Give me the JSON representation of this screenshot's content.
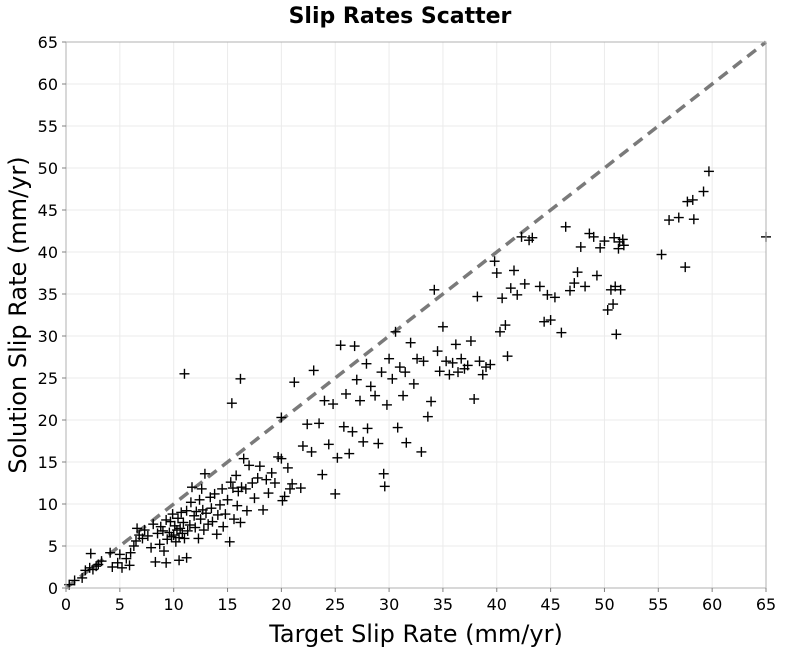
{
  "chart_data": {
    "type": "scatter",
    "title": "Slip Rates Scatter",
    "xlabel": "Target Slip Rate (mm/yr)",
    "ylabel": "Solution Slip Rate (mm/yr)",
    "xlim": [
      0,
      65
    ],
    "ylim": [
      0,
      65
    ],
    "xticks": [
      0,
      5,
      10,
      15,
      20,
      25,
      30,
      35,
      40,
      45,
      50,
      55,
      60,
      65
    ],
    "yticks": [
      0,
      5,
      10,
      15,
      20,
      25,
      30,
      35,
      40,
      45,
      50,
      55,
      60,
      65
    ],
    "grid": true,
    "marker": "plus",
    "marker_color": "#000000",
    "reference_line": {
      "from": [
        0,
        0
      ],
      "to": [
        65,
        65
      ],
      "style": "dashed",
      "color": "#7a7a7a"
    },
    "points": [
      [
        0.3,
        0.4
      ],
      [
        0.8,
        0.9
      ],
      [
        1.5,
        1.2
      ],
      [
        1.8,
        2.1
      ],
      [
        2.2,
        2.4
      ],
      [
        2.5,
        2.2
      ],
      [
        2.8,
        2.6
      ],
      [
        2.3,
        4.1
      ],
      [
        3.0,
        2.8
      ],
      [
        3.3,
        3.2
      ],
      [
        4.1,
        4.2
      ],
      [
        4.3,
        2.5
      ],
      [
        4.8,
        3.0
      ],
      [
        5.0,
        4.0
      ],
      [
        5.2,
        2.4
      ],
      [
        5.6,
        3.5
      ],
      [
        5.9,
        2.7
      ],
      [
        6.0,
        4.2
      ],
      [
        6.3,
        5.0
      ],
      [
        6.5,
        5.6
      ],
      [
        6.6,
        7.1
      ],
      [
        6.8,
        6.3
      ],
      [
        7.1,
        5.9
      ],
      [
        7.3,
        6.9
      ],
      [
        7.6,
        6.2
      ],
      [
        7.9,
        4.8
      ],
      [
        8.1,
        7.6
      ],
      [
        8.3,
        3.1
      ],
      [
        8.5,
        6.5
      ],
      [
        8.7,
        5.2
      ],
      [
        8.8,
        7.3
      ],
      [
        9.0,
        6.8
      ],
      [
        9.1,
        4.4
      ],
      [
        9.3,
        8.1
      ],
      [
        9.4,
        5.8
      ],
      [
        9.6,
        6.6
      ],
      [
        9.7,
        7.9
      ],
      [
        9.8,
        6.1
      ],
      [
        9.9,
        8.8
      ],
      [
        10.0,
        6.3
      ],
      [
        10.1,
        7.4
      ],
      [
        10.2,
        5.5
      ],
      [
        10.3,
        6.9
      ],
      [
        10.4,
        8.3
      ],
      [
        10.5,
        6.0
      ],
      [
        10.6,
        7.1
      ],
      [
        10.7,
        9.0
      ],
      [
        10.8,
        6.5
      ],
      [
        10.9,
        7.8
      ],
      [
        11.0,
        5.9
      ],
      [
        9.3,
        3.0
      ],
      [
        10.5,
        3.3
      ],
      [
        11.2,
        3.6
      ],
      [
        11.2,
        9.2
      ],
      [
        11.3,
        6.8
      ],
      [
        11.5,
        7.5
      ],
      [
        11.6,
        10.2
      ],
      [
        11.7,
        12.0
      ],
      [
        11.9,
        8.6
      ],
      [
        12.0,
        7.2
      ],
      [
        12.1,
        9.1
      ],
      [
        12.3,
        5.9
      ],
      [
        12.4,
        10.5
      ],
      [
        12.5,
        8.2
      ],
      [
        12.6,
        11.8
      ],
      [
        12.7,
        9.3
      ],
      [
        12.8,
        6.9
      ],
      [
        12.9,
        13.6
      ],
      [
        13.0,
        8.9
      ],
      [
        13.2,
        7.6
      ],
      [
        13.4,
        10.8
      ],
      [
        13.5,
        9.5
      ],
      [
        13.6,
        7.9
      ],
      [
        13.8,
        11.2
      ],
      [
        14.0,
        6.4
      ],
      [
        14.1,
        8.7
      ],
      [
        14.3,
        9.9
      ],
      [
        14.5,
        11.8
      ],
      [
        14.6,
        7.3
      ],
      [
        14.8,
        8.8
      ],
      [
        15.0,
        10.5
      ],
      [
        15.2,
        5.5
      ],
      [
        15.3,
        12.6
      ],
      [
        15.5,
        11.9
      ],
      [
        15.6,
        8.2
      ],
      [
        15.8,
        13.4
      ],
      [
        15.9,
        9.8
      ],
      [
        16.0,
        11.5
      ],
      [
        16.2,
        7.8
      ],
      [
        16.3,
        12.0
      ],
      [
        16.5,
        15.4
      ],
      [
        16.7,
        11.8
      ],
      [
        16.8,
        9.2
      ],
      [
        17.0,
        14.6
      ],
      [
        17.3,
        12.5
      ],
      [
        17.5,
        10.7
      ],
      [
        17.8,
        13.1
      ],
      [
        18.0,
        14.5
      ],
      [
        18.3,
        9.3
      ],
      [
        18.6,
        12.9
      ],
      [
        18.8,
        11.3
      ],
      [
        19.1,
        13.7
      ],
      [
        19.4,
        12.5
      ],
      [
        19.7,
        15.6
      ],
      [
        20.0,
        15.4
      ],
      [
        20.3,
        10.9
      ],
      [
        20.6,
        14.3
      ],
      [
        20.8,
        11.8
      ],
      [
        21.0,
        12.4
      ],
      [
        21.2,
        24.5
      ],
      [
        11.0,
        25.5
      ],
      [
        15.4,
        22.0
      ],
      [
        16.2,
        24.9
      ],
      [
        20.0,
        20.3
      ],
      [
        22.0,
        16.9
      ],
      [
        22.4,
        19.5
      ],
      [
        22.8,
        16.2
      ],
      [
        23.0,
        25.9
      ],
      [
        23.5,
        19.6
      ],
      [
        23.8,
        13.5
      ],
      [
        24.0,
        22.3
      ],
      [
        24.4,
        17.1
      ],
      [
        24.8,
        21.9
      ],
      [
        25.0,
        11.2
      ],
      [
        25.2,
        15.5
      ],
      [
        25.5,
        28.9
      ],
      [
        25.8,
        19.2
      ],
      [
        26.0,
        23.1
      ],
      [
        26.3,
        16.0
      ],
      [
        26.6,
        18.6
      ],
      [
        26.8,
        28.8
      ],
      [
        27.0,
        24.8
      ],
      [
        27.3,
        22.3
      ],
      [
        27.6,
        17.4
      ],
      [
        27.9,
        26.7
      ],
      [
        28.0,
        19.0
      ],
      [
        28.3,
        24.0
      ],
      [
        28.7,
        22.9
      ],
      [
        29.0,
        17.2
      ],
      [
        29.3,
        25.7
      ],
      [
        29.5,
        13.6
      ],
      [
        29.6,
        12.1
      ],
      [
        29.8,
        21.8
      ],
      [
        30.0,
        27.3
      ],
      [
        30.3,
        24.9
      ],
      [
        30.6,
        30.5
      ],
      [
        30.8,
        19.1
      ],
      [
        31.0,
        26.3
      ],
      [
        31.3,
        22.9
      ],
      [
        31.5,
        25.7
      ],
      [
        31.6,
        17.3
      ],
      [
        32.0,
        29.2
      ],
      [
        32.3,
        24.3
      ],
      [
        32.6,
        27.3
      ],
      [
        33.0,
        16.2
      ],
      [
        33.2,
        27.0
      ],
      [
        33.6,
        20.4
      ],
      [
        33.9,
        22.2
      ],
      [
        34.2,
        35.5
      ],
      [
        34.5,
        28.2
      ],
      [
        34.7,
        25.8
      ],
      [
        35.0,
        31.1
      ],
      [
        35.3,
        27.0
      ],
      [
        35.6,
        25.4
      ],
      [
        35.9,
        26.8
      ],
      [
        36.2,
        29.0
      ],
      [
        36.4,
        25.7
      ],
      [
        36.7,
        27.3
      ],
      [
        37.0,
        26.1
      ],
      [
        37.3,
        26.5
      ],
      [
        37.6,
        29.4
      ],
      [
        37.9,
        22.5
      ],
      [
        38.2,
        34.7
      ],
      [
        38.4,
        27.0
      ],
      [
        38.7,
        25.4
      ],
      [
        39.0,
        26.3
      ],
      [
        39.4,
        26.6
      ],
      [
        39.8,
        38.9
      ],
      [
        40.0,
        37.5
      ],
      [
        40.3,
        30.5
      ],
      [
        40.5,
        34.5
      ],
      [
        40.8,
        31.3
      ],
      [
        41.0,
        27.6
      ],
      [
        41.3,
        35.7
      ],
      [
        41.6,
        37.8
      ],
      [
        41.9,
        34.9
      ],
      [
        42.3,
        41.8
      ],
      [
        42.6,
        36.2
      ],
      [
        43.0,
        41.4
      ],
      [
        43.3,
        41.7
      ],
      [
        44.0,
        35.9
      ],
      [
        44.4,
        31.7
      ],
      [
        44.7,
        34.9
      ],
      [
        45.0,
        31.9
      ],
      [
        45.4,
        34.6
      ],
      [
        46.0,
        30.4
      ],
      [
        46.4,
        43.0
      ],
      [
        46.8,
        35.4
      ],
      [
        47.2,
        36.3
      ],
      [
        47.5,
        37.6
      ],
      [
        47.8,
        40.6
      ],
      [
        48.2,
        35.9
      ],
      [
        48.6,
        42.2
      ],
      [
        49.0,
        41.8
      ],
      [
        49.3,
        37.2
      ],
      [
        49.6,
        40.5
      ],
      [
        50.0,
        41.3
      ],
      [
        50.3,
        33.1
      ],
      [
        50.6,
        35.5
      ],
      [
        50.8,
        33.8
      ],
      [
        50.9,
        41.7
      ],
      [
        51.0,
        35.9
      ],
      [
        51.1,
        30.2
      ],
      [
        51.3,
        40.4
      ],
      [
        51.4,
        41.2
      ],
      [
        51.5,
        35.5
      ],
      [
        51.7,
        41.5
      ],
      [
        51.8,
        40.8
      ],
      [
        55.3,
        39.7
      ],
      [
        56.0,
        43.8
      ],
      [
        56.9,
        44.1
      ],
      [
        57.5,
        38.2
      ],
      [
        57.7,
        46.0
      ],
      [
        58.2,
        46.2
      ],
      [
        58.3,
        43.9
      ],
      [
        59.2,
        47.2
      ],
      [
        59.7,
        49.6
      ],
      [
        65.0,
        41.8
      ],
      [
        20.1,
        10.4
      ],
      [
        21.8,
        11.9
      ]
    ]
  }
}
